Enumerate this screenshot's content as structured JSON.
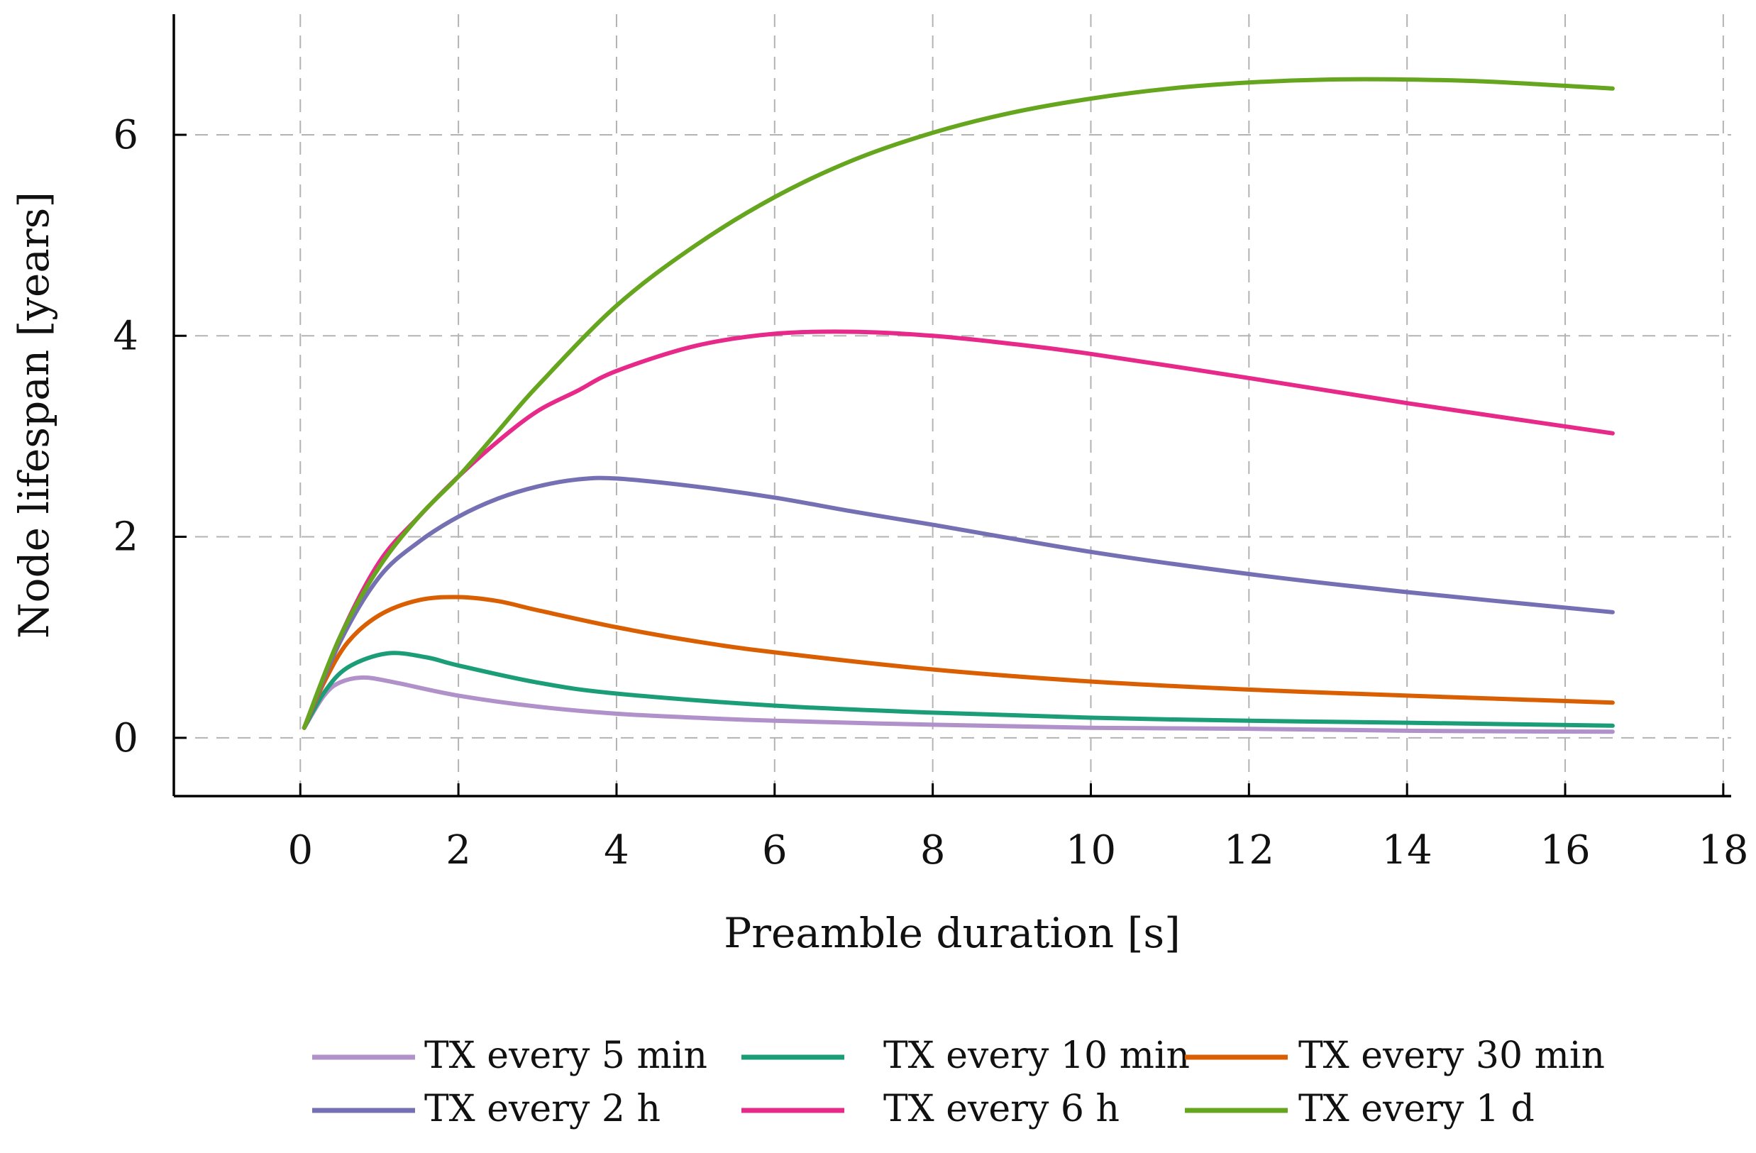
{
  "chart_data": {
    "type": "line",
    "xlabel": "Preamble duration [s]",
    "ylabel": "Node lifespan [years]",
    "xlim": [
      -1.6,
      18.1
    ],
    "ylim": [
      -0.58,
      7.2
    ],
    "xticks": [
      0,
      2,
      4,
      6,
      8,
      10,
      12,
      14,
      16,
      18
    ],
    "yticks": [
      0,
      2,
      4,
      6
    ],
    "grid": true,
    "legend_position": "bottom",
    "series": [
      {
        "name": "TX every 5 min",
        "color": "#b091c9",
        "x": [
          0.05,
          0.3,
          0.5,
          0.8,
          1.2,
          2.0,
          3.0,
          4.0,
          5.0,
          6.0,
          8.0,
          10.0,
          12.0,
          14.0,
          16.6
        ],
        "y": [
          0.1,
          0.42,
          0.55,
          0.6,
          0.55,
          0.42,
          0.31,
          0.24,
          0.2,
          0.17,
          0.13,
          0.1,
          0.09,
          0.07,
          0.06
        ]
      },
      {
        "name": "TX every 10 min",
        "color": "#1b9e77",
        "x": [
          0.05,
          0.3,
          0.6,
          1.1,
          1.6,
          2.0,
          3.0,
          4.0,
          6.0,
          8.0,
          10.0,
          12.0,
          14.0,
          16.6
        ],
        "y": [
          0.1,
          0.45,
          0.7,
          0.84,
          0.8,
          0.72,
          0.55,
          0.44,
          0.32,
          0.25,
          0.2,
          0.17,
          0.15,
          0.12
        ]
      },
      {
        "name": "TX every 30 min",
        "color": "#d95f02",
        "x": [
          0.05,
          0.3,
          0.6,
          1.0,
          1.5,
          2.0,
          2.5,
          3.0,
          4.0,
          5.0,
          6.0,
          8.0,
          10.0,
          12.0,
          14.0,
          16.6
        ],
        "y": [
          0.1,
          0.55,
          0.95,
          1.22,
          1.37,
          1.4,
          1.36,
          1.27,
          1.1,
          0.96,
          0.85,
          0.68,
          0.56,
          0.48,
          0.42,
          0.35
        ]
      },
      {
        "name": "TX every 2 h",
        "color": "#7570b3",
        "x": [
          0.05,
          0.5,
          1.0,
          1.5,
          2.0,
          2.5,
          3.0,
          3.5,
          4.0,
          5.0,
          6.0,
          7.0,
          8.0,
          10.0,
          12.0,
          14.0,
          16.6
        ],
        "y": [
          0.1,
          0.95,
          1.6,
          1.95,
          2.2,
          2.38,
          2.5,
          2.57,
          2.58,
          2.5,
          2.39,
          2.25,
          2.12,
          1.85,
          1.63,
          1.45,
          1.25
        ]
      },
      {
        "name": "TX every 6 h",
        "color": "#e7298a",
        "x": [
          0.05,
          0.5,
          1.0,
          1.5,
          2.0,
          2.5,
          3.0,
          3.5,
          4.0,
          5.0,
          6.0,
          7.0,
          8.0,
          9.0,
          10.0,
          12.0,
          14.0,
          16.6
        ],
        "y": [
          0.1,
          1.0,
          1.75,
          2.2,
          2.6,
          2.95,
          3.25,
          3.45,
          3.65,
          3.9,
          4.02,
          4.04,
          4.0,
          3.92,
          3.82,
          3.58,
          3.33,
          3.03
        ]
      },
      {
        "name": "TX every 1 d",
        "color": "#66a61e",
        "x": [
          0.05,
          0.5,
          1.0,
          1.5,
          2.0,
          2.5,
          3.0,
          4.0,
          5.0,
          6.0,
          7.0,
          8.0,
          9.0,
          10.0,
          11.0,
          12.0,
          13.0,
          14.0,
          15.0,
          16.6
        ],
        "y": [
          0.1,
          1.0,
          1.7,
          2.2,
          2.6,
          3.05,
          3.5,
          4.3,
          4.9,
          5.38,
          5.75,
          6.02,
          6.22,
          6.36,
          6.46,
          6.52,
          6.55,
          6.55,
          6.53,
          6.46
        ]
      }
    ]
  }
}
